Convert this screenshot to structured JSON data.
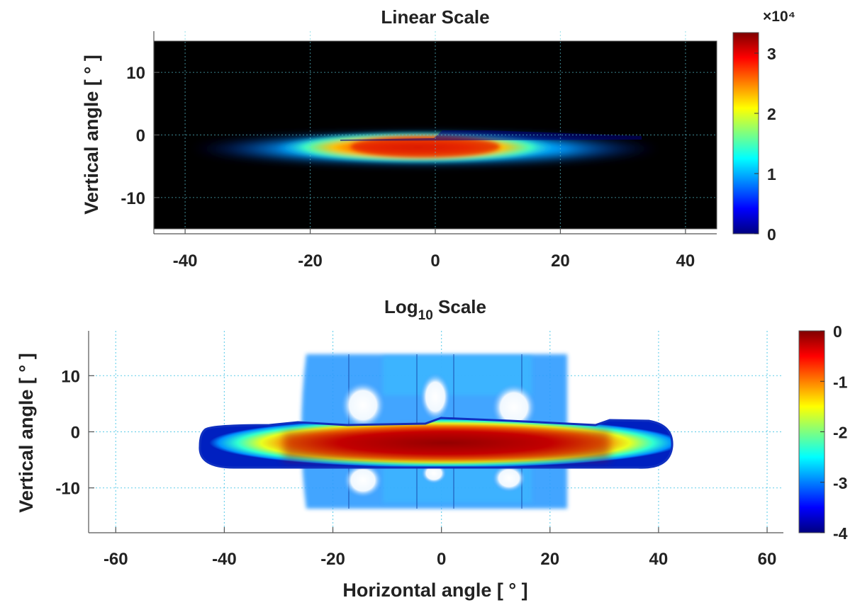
{
  "chart_data": [
    {
      "type": "heatmap",
      "title": "Linear Scale",
      "xlabel": "",
      "ylabel": "Vertical angle  [ ° ]",
      "xlim": [
        -45,
        45
      ],
      "ylim": [
        -15,
        15
      ],
      "xticks": [
        -40,
        -20,
        0,
        20,
        40
      ],
      "xtick_labels": [
        "-40",
        "-20",
        "0",
        "20",
        "40"
      ],
      "yticks": [
        10,
        0,
        -10
      ],
      "ytick_labels": [
        "10",
        "0",
        "-10"
      ],
      "grid": true,
      "colormap": "jet",
      "colorbar": {
        "exponent_label": "×10⁴",
        "clim": [
          0,
          3.2
        ],
        "ticks": [
          0,
          1,
          2,
          3
        ],
        "tick_labels": [
          "0",
          "1",
          "2",
          "3"
        ]
      },
      "peak_value": 32000,
      "background_color": "#00007f"
    },
    {
      "type": "heatmap",
      "title_main": "Log",
      "title_sub": "10",
      "title_rest": " Scale",
      "xlabel": "Horizontal angle  [ ° ]",
      "ylabel": "Vertical angle  [ ° ]",
      "xlim": [
        -65,
        63
      ],
      "ylim": [
        -18,
        18
      ],
      "xticks": [
        -60,
        -40,
        -20,
        0,
        20,
        40,
        60
      ],
      "xtick_labels": [
        "-60",
        "-40",
        "-20",
        "0",
        "20",
        "40",
        "60"
      ],
      "yticks": [
        10,
        0,
        -10
      ],
      "ytick_labels": [
        "10",
        "0",
        "-10"
      ],
      "grid": true,
      "colormap": "jet",
      "colorbar": {
        "clim": [
          -4,
          0
        ],
        "ticks": [
          0,
          -1,
          -2,
          -3,
          -4
        ],
        "tick_labels": [
          "0",
          "-1",
          "-2",
          "-3",
          "-4"
        ]
      },
      "background_color": "#ffffff"
    }
  ]
}
